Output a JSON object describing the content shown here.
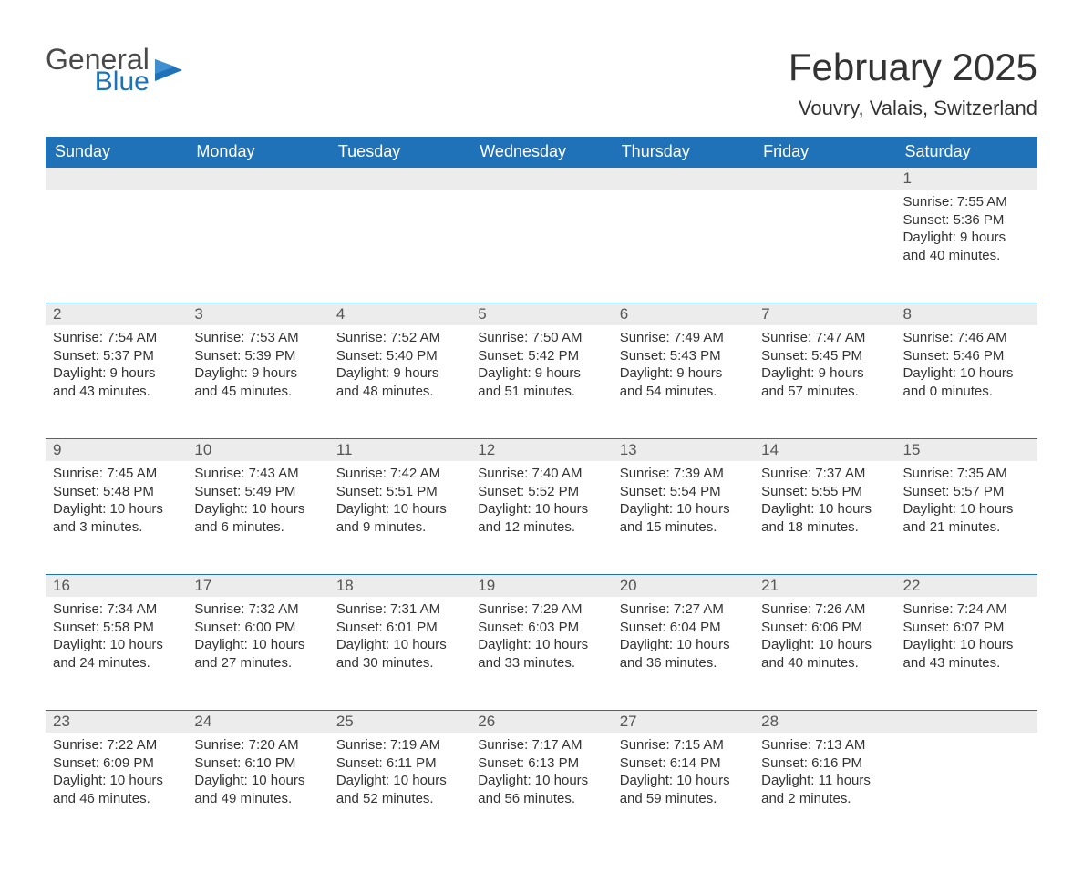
{
  "logo": {
    "general": "General",
    "blue": "Blue",
    "icon_color": "#2072b8"
  },
  "title": "February 2025",
  "subtitle": "Vouvry, Valais, Switzerland",
  "colors": {
    "header_bg": "#2072b8",
    "header_fg": "#ffffff",
    "daynum_bg": "#ececec",
    "daynum_fg": "#555555",
    "text": "#333333",
    "row_border": "#2072b8",
    "page_bg": "#ffffff"
  },
  "typography": {
    "title_fontsize": 42,
    "subtitle_fontsize": 22,
    "header_fontsize": 18,
    "daynum_fontsize": 17,
    "cell_fontsize": 15
  },
  "day_headers": [
    "Sunday",
    "Monday",
    "Tuesday",
    "Wednesday",
    "Thursday",
    "Friday",
    "Saturday"
  ],
  "weeks": [
    [
      null,
      null,
      null,
      null,
      null,
      null,
      {
        "n": "1",
        "sr": "7:55 AM",
        "ss": "5:36 PM",
        "dl": "9 hours and 40 minutes."
      }
    ],
    [
      {
        "n": "2",
        "sr": "7:54 AM",
        "ss": "5:37 PM",
        "dl": "9 hours and 43 minutes."
      },
      {
        "n": "3",
        "sr": "7:53 AM",
        "ss": "5:39 PM",
        "dl": "9 hours and 45 minutes."
      },
      {
        "n": "4",
        "sr": "7:52 AM",
        "ss": "5:40 PM",
        "dl": "9 hours and 48 minutes."
      },
      {
        "n": "5",
        "sr": "7:50 AM",
        "ss": "5:42 PM",
        "dl": "9 hours and 51 minutes."
      },
      {
        "n": "6",
        "sr": "7:49 AM",
        "ss": "5:43 PM",
        "dl": "9 hours and 54 minutes."
      },
      {
        "n": "7",
        "sr": "7:47 AM",
        "ss": "5:45 PM",
        "dl": "9 hours and 57 minutes."
      },
      {
        "n": "8",
        "sr": "7:46 AM",
        "ss": "5:46 PM",
        "dl": "10 hours and 0 minutes."
      }
    ],
    [
      {
        "n": "9",
        "sr": "7:45 AM",
        "ss": "5:48 PM",
        "dl": "10 hours and 3 minutes."
      },
      {
        "n": "10",
        "sr": "7:43 AM",
        "ss": "5:49 PM",
        "dl": "10 hours and 6 minutes."
      },
      {
        "n": "11",
        "sr": "7:42 AM",
        "ss": "5:51 PM",
        "dl": "10 hours and 9 minutes."
      },
      {
        "n": "12",
        "sr": "7:40 AM",
        "ss": "5:52 PM",
        "dl": "10 hours and 12 minutes."
      },
      {
        "n": "13",
        "sr": "7:39 AM",
        "ss": "5:54 PM",
        "dl": "10 hours and 15 minutes."
      },
      {
        "n": "14",
        "sr": "7:37 AM",
        "ss": "5:55 PM",
        "dl": "10 hours and 18 minutes."
      },
      {
        "n": "15",
        "sr": "7:35 AM",
        "ss": "5:57 PM",
        "dl": "10 hours and 21 minutes."
      }
    ],
    [
      {
        "n": "16",
        "sr": "7:34 AM",
        "ss": "5:58 PM",
        "dl": "10 hours and 24 minutes."
      },
      {
        "n": "17",
        "sr": "7:32 AM",
        "ss": "6:00 PM",
        "dl": "10 hours and 27 minutes."
      },
      {
        "n": "18",
        "sr": "7:31 AM",
        "ss": "6:01 PM",
        "dl": "10 hours and 30 minutes."
      },
      {
        "n": "19",
        "sr": "7:29 AM",
        "ss": "6:03 PM",
        "dl": "10 hours and 33 minutes."
      },
      {
        "n": "20",
        "sr": "7:27 AM",
        "ss": "6:04 PM",
        "dl": "10 hours and 36 minutes."
      },
      {
        "n": "21",
        "sr": "7:26 AM",
        "ss": "6:06 PM",
        "dl": "10 hours and 40 minutes."
      },
      {
        "n": "22",
        "sr": "7:24 AM",
        "ss": "6:07 PM",
        "dl": "10 hours and 43 minutes."
      }
    ],
    [
      {
        "n": "23",
        "sr": "7:22 AM",
        "ss": "6:09 PM",
        "dl": "10 hours and 46 minutes."
      },
      {
        "n": "24",
        "sr": "7:20 AM",
        "ss": "6:10 PM",
        "dl": "10 hours and 49 minutes."
      },
      {
        "n": "25",
        "sr": "7:19 AM",
        "ss": "6:11 PM",
        "dl": "10 hours and 52 minutes."
      },
      {
        "n": "26",
        "sr": "7:17 AM",
        "ss": "6:13 PM",
        "dl": "10 hours and 56 minutes."
      },
      {
        "n": "27",
        "sr": "7:15 AM",
        "ss": "6:14 PM",
        "dl": "10 hours and 59 minutes."
      },
      {
        "n": "28",
        "sr": "7:13 AM",
        "ss": "6:16 PM",
        "dl": "11 hours and 2 minutes."
      },
      null
    ]
  ],
  "labels": {
    "sunrise": "Sunrise: ",
    "sunset": "Sunset: ",
    "daylight": "Daylight: "
  }
}
